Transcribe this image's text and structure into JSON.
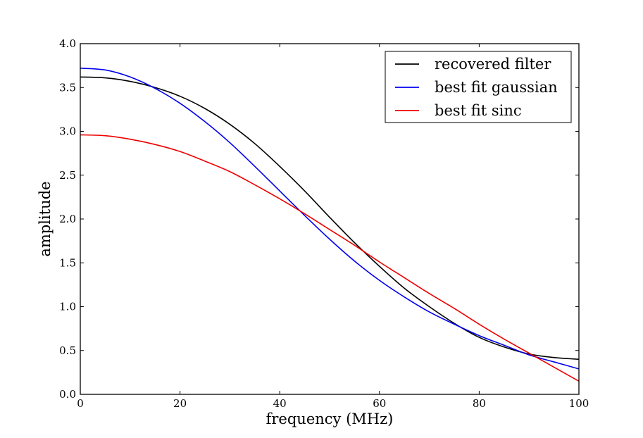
{
  "chart_data": {
    "type": "line",
    "title": "",
    "xlabel": "frequency (MHz)",
    "ylabel": "amplitude",
    "xlim": [
      0,
      100
    ],
    "ylim": [
      0,
      4.0
    ],
    "xticks": [
      "0",
      "20",
      "40",
      "60",
      "80",
      "100"
    ],
    "yticks": [
      "0.0",
      "0.5",
      "1.0",
      "1.5",
      "2.0",
      "2.5",
      "3.0",
      "3.5",
      "4.0"
    ],
    "grid": false,
    "legend_position": "top-right",
    "x": [
      0,
      5,
      10,
      15,
      20,
      25,
      30,
      35,
      40,
      45,
      50,
      55,
      60,
      65,
      70,
      75,
      80,
      85,
      90,
      95,
      100
    ],
    "series": [
      {
        "name": "recovered filter",
        "color": "#000000",
        "values": [
          3.62,
          3.61,
          3.57,
          3.5,
          3.4,
          3.26,
          3.08,
          2.86,
          2.6,
          2.32,
          2.02,
          1.73,
          1.46,
          1.21,
          1.0,
          0.81,
          0.65,
          0.54,
          0.46,
          0.42,
          0.4
        ]
      },
      {
        "name": "best fit gaussian",
        "color": "#0000ee",
        "values": [
          3.72,
          3.7,
          3.62,
          3.49,
          3.32,
          3.11,
          2.87,
          2.6,
          2.32,
          2.04,
          1.77,
          1.52,
          1.3,
          1.11,
          0.94,
          0.8,
          0.67,
          0.56,
          0.45,
          0.37,
          0.29
        ]
      },
      {
        "name": "best fit sinc",
        "color": "#ee0000",
        "values": [
          2.96,
          2.95,
          2.91,
          2.85,
          2.77,
          2.66,
          2.54,
          2.39,
          2.23,
          2.06,
          1.88,
          1.7,
          1.51,
          1.33,
          1.15,
          0.98,
          0.8,
          0.63,
          0.47,
          0.31,
          0.15
        ]
      }
    ]
  }
}
